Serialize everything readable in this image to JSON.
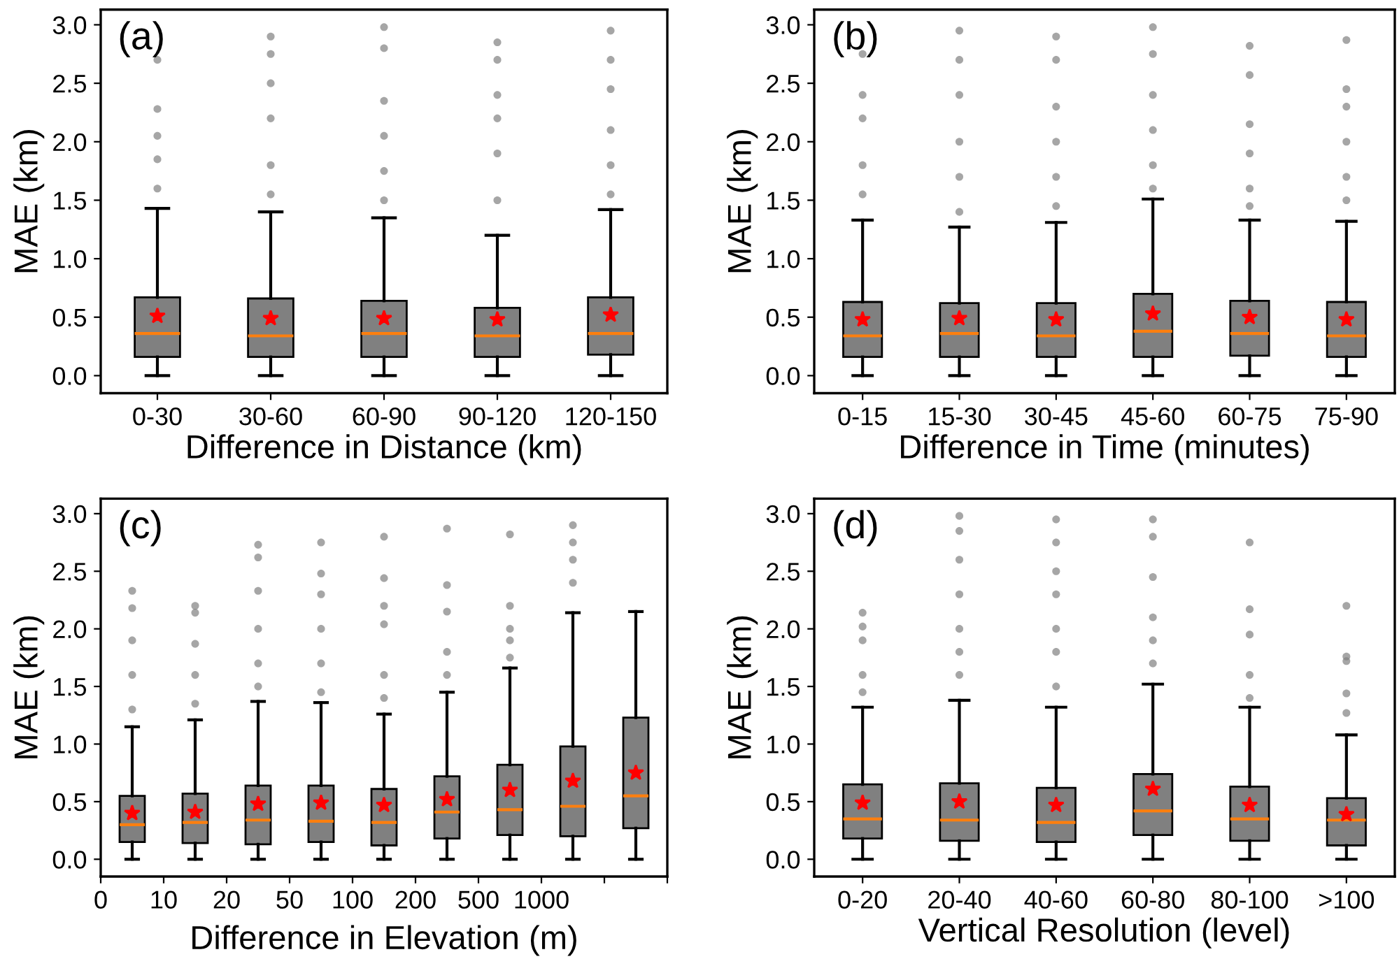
{
  "chart_data": [
    {
      "type": "box",
      "title": "(a)",
      "xlabel": "Difference in Distance (km)",
      "ylabel": "MAE (km)",
      "color": "#808080",
      "categories": [
        "0-30",
        "30-60",
        "60-90",
        "90-120",
        "120-150"
      ],
      "ylim": [
        -0.15,
        3.13
      ],
      "yticks": [
        {
          "value": 0,
          "label": "0.0"
        },
        {
          "value": 0.5,
          "label": "0.5"
        },
        {
          "value": 1,
          "label": "1.0"
        },
        {
          "value": 1.5,
          "label": "1.5"
        },
        {
          "value": 2,
          "label": "2.0"
        },
        {
          "value": 2.5,
          "label": "2.5"
        },
        {
          "value": 3,
          "label": "3.0"
        }
      ],
      "grid": false,
      "marker": "star",
      "boxes": [
        {
          "low": 0,
          "q1": 0.16,
          "median": 0.36,
          "q3": 0.67,
          "high": 1.43,
          "mean": 0.51,
          "outliers": [
            2.7,
            2.28,
            2.05,
            1.85,
            1.6
          ]
        },
        {
          "low": 0,
          "q1": 0.16,
          "median": 0.34,
          "q3": 0.66,
          "high": 1.4,
          "mean": 0.49,
          "outliers": [
            2.9,
            2.75,
            2.5,
            2.2,
            1.8,
            1.55
          ]
        },
        {
          "low": 0,
          "q1": 0.16,
          "median": 0.36,
          "q3": 0.64,
          "high": 1.35,
          "mean": 0.49,
          "outliers": [
            2.98,
            2.8,
            2.35,
            2.05,
            1.75,
            1.5
          ]
        },
        {
          "low": 0,
          "q1": 0.16,
          "median": 0.34,
          "q3": 0.58,
          "high": 1.2,
          "mean": 0.48,
          "outliers": [
            2.85,
            2.7,
            2.4,
            2.2,
            1.9,
            1.5
          ]
        },
        {
          "low": 0,
          "q1": 0.18,
          "median": 0.36,
          "q3": 0.67,
          "high": 1.42,
          "mean": 0.52,
          "outliers": [
            2.95,
            2.7,
            2.45,
            2.1,
            1.8,
            1.55
          ]
        }
      ]
    },
    {
      "type": "box",
      "title": "(b)",
      "xlabel": "Difference in Time (minutes)",
      "ylabel": "MAE (km)",
      "color": "#808080",
      "categories": [
        "0-15",
        "15-30",
        "30-45",
        "45-60",
        "60-75",
        "75-90"
      ],
      "ylim": [
        -0.15,
        3.13
      ],
      "yticks": [
        {
          "value": 0,
          "label": "0.0"
        },
        {
          "value": 0.5,
          "label": "0.5"
        },
        {
          "value": 1,
          "label": "1.0"
        },
        {
          "value": 1.5,
          "label": "1.5"
        },
        {
          "value": 2,
          "label": "2.0"
        },
        {
          "value": 2.5,
          "label": "2.5"
        },
        {
          "value": 3,
          "label": "3.0"
        }
      ],
      "grid": false,
      "marker": "star",
      "boxes": [
        {
          "low": 0,
          "q1": 0.16,
          "median": 0.34,
          "q3": 0.63,
          "high": 1.33,
          "mean": 0.48,
          "outliers": [
            2.75,
            2.4,
            2.2,
            1.8,
            1.55
          ]
        },
        {
          "low": 0,
          "q1": 0.16,
          "median": 0.36,
          "q3": 0.62,
          "high": 1.27,
          "mean": 0.49,
          "outliers": [
            2.95,
            2.7,
            2.4,
            2.0,
            1.7,
            1.4
          ]
        },
        {
          "low": 0,
          "q1": 0.16,
          "median": 0.34,
          "q3": 0.62,
          "high": 1.31,
          "mean": 0.48,
          "outliers": [
            2.9,
            2.7,
            2.3,
            2.0,
            1.7,
            1.45
          ]
        },
        {
          "low": 0,
          "q1": 0.16,
          "median": 0.38,
          "q3": 0.7,
          "high": 1.51,
          "mean": 0.53,
          "outliers": [
            2.98,
            2.75,
            2.4,
            2.1,
            1.8,
            1.6
          ]
        },
        {
          "low": 0,
          "q1": 0.17,
          "median": 0.36,
          "q3": 0.64,
          "high": 1.33,
          "mean": 0.5,
          "outliers": [
            2.82,
            2.57,
            2.15,
            1.9,
            1.6,
            1.45
          ]
        },
        {
          "low": 0,
          "q1": 0.16,
          "median": 0.34,
          "q3": 0.63,
          "high": 1.32,
          "mean": 0.48,
          "outliers": [
            2.87,
            2.45,
            2.3,
            2.0,
            1.7,
            1.5
          ]
        }
      ]
    },
    {
      "type": "box",
      "title": "(c)",
      "xlabel": "Difference in Elevation (m)",
      "ylabel": "MAE (km)",
      "color": "#808080",
      "categories": [
        null,
        null,
        null,
        null,
        null,
        null,
        null,
        null,
        null
      ],
      "annotations": [
        "0",
        "10",
        "20",
        "50",
        "100",
        "200",
        "500",
        "1000"
      ],
      "ylim": [
        -0.15,
        3.13
      ],
      "yticks": [
        {
          "value": 0,
          "label": "0.0"
        },
        {
          "value": 0.5,
          "label": "0.5"
        },
        {
          "value": 1,
          "label": "1.0"
        },
        {
          "value": 1.5,
          "label": "1.5"
        },
        {
          "value": 2,
          "label": "2.0"
        },
        {
          "value": 2.5,
          "label": "2.5"
        },
        {
          "value": 3,
          "label": "3.0"
        }
      ],
      "grid": false,
      "marker": "star",
      "boxes": [
        {
          "low": 0,
          "q1": 0.15,
          "median": 0.3,
          "q3": 0.55,
          "high": 1.15,
          "mean": 0.4,
          "outliers": [
            2.33,
            2.18,
            1.9,
            1.6,
            1.3
          ]
        },
        {
          "low": 0,
          "q1": 0.14,
          "median": 0.32,
          "q3": 0.57,
          "high": 1.21,
          "mean": 0.41,
          "outliers": [
            2.2,
            2.14,
            1.87,
            1.6,
            1.35
          ]
        },
        {
          "low": 0,
          "q1": 0.13,
          "median": 0.34,
          "q3": 0.64,
          "high": 1.37,
          "mean": 0.48,
          "outliers": [
            2.73,
            2.62,
            2.33,
            2.0,
            1.7,
            1.5
          ]
        },
        {
          "low": 0,
          "q1": 0.15,
          "median": 0.33,
          "q3": 0.64,
          "high": 1.36,
          "mean": 0.49,
          "outliers": [
            2.75,
            2.48,
            2.3,
            2.0,
            1.7,
            1.45
          ]
        },
        {
          "low": 0,
          "q1": 0.12,
          "median": 0.32,
          "q3": 0.61,
          "high": 1.26,
          "mean": 0.47,
          "outliers": [
            2.8,
            2.44,
            2.2,
            2.04,
            1.6,
            1.4
          ]
        },
        {
          "low": 0,
          "q1": 0.18,
          "median": 0.41,
          "q3": 0.72,
          "high": 1.45,
          "mean": 0.52,
          "outliers": [
            2.87,
            2.38,
            2.15,
            1.8,
            1.6
          ]
        },
        {
          "low": 0,
          "q1": 0.21,
          "median": 0.43,
          "q3": 0.82,
          "high": 1.66,
          "mean": 0.6,
          "outliers": [
            2.82,
            2.2,
            2.0,
            1.9,
            1.75
          ]
        },
        {
          "low": 0,
          "q1": 0.2,
          "median": 0.46,
          "q3": 0.98,
          "high": 2.14,
          "mean": 0.68,
          "outliers": [
            2.9,
            2.75,
            2.6,
            2.4
          ]
        },
        {
          "low": 0,
          "q1": 0.27,
          "median": 0.55,
          "q3": 1.23,
          "high": 2.15,
          "mean": 0.75
        }
      ]
    },
    {
      "type": "box",
      "title": "(d)",
      "xlabel": "Vertical Resolution (level)",
      "ylabel": "MAE (km)",
      "color": "#808080",
      "categories": [
        "0-20",
        "20-40",
        "40-60",
        "60-80",
        "80-100",
        ">100"
      ],
      "ylim": [
        -0.15,
        3.13
      ],
      "yticks": [
        {
          "value": 0,
          "label": "0.0"
        },
        {
          "value": 0.5,
          "label": "0.5"
        },
        {
          "value": 1,
          "label": "1.0"
        },
        {
          "value": 1.5,
          "label": "1.5"
        },
        {
          "value": 2,
          "label": "2.0"
        },
        {
          "value": 2.5,
          "label": "2.5"
        },
        {
          "value": 3,
          "label": "3.0"
        }
      ],
      "grid": false,
      "marker": "star",
      "boxes": [
        {
          "low": 0,
          "q1": 0.18,
          "median": 0.35,
          "q3": 0.65,
          "high": 1.32,
          "mean": 0.49,
          "outliers": [
            2.14,
            2.02,
            1.9,
            1.6,
            1.45
          ]
        },
        {
          "low": 0,
          "q1": 0.16,
          "median": 0.34,
          "q3": 0.66,
          "high": 1.38,
          "mean": 0.5,
          "outliers": [
            2.98,
            2.85,
            2.6,
            2.3,
            2.0,
            1.8,
            1.6
          ]
        },
        {
          "low": 0,
          "q1": 0.15,
          "median": 0.32,
          "q3": 0.62,
          "high": 1.32,
          "mean": 0.47,
          "outliers": [
            2.95,
            2.75,
            2.5,
            2.3,
            2.0,
            1.8,
            1.5
          ]
        },
        {
          "low": 0,
          "q1": 0.21,
          "median": 0.42,
          "q3": 0.74,
          "high": 1.52,
          "mean": 0.61,
          "outliers": [
            2.95,
            2.8,
            2.45,
            2.1,
            1.9,
            1.7
          ]
        },
        {
          "low": 0,
          "q1": 0.16,
          "median": 0.35,
          "q3": 0.63,
          "high": 1.32,
          "mean": 0.47,
          "outliers": [
            2.75,
            2.17,
            1.95,
            1.6,
            1.4
          ]
        },
        {
          "low": 0,
          "q1": 0.12,
          "median": 0.34,
          "q3": 0.53,
          "high": 1.08,
          "mean": 0.39,
          "outliers": [
            2.2,
            1.76,
            1.72,
            1.44,
            1.27
          ]
        }
      ]
    }
  ]
}
